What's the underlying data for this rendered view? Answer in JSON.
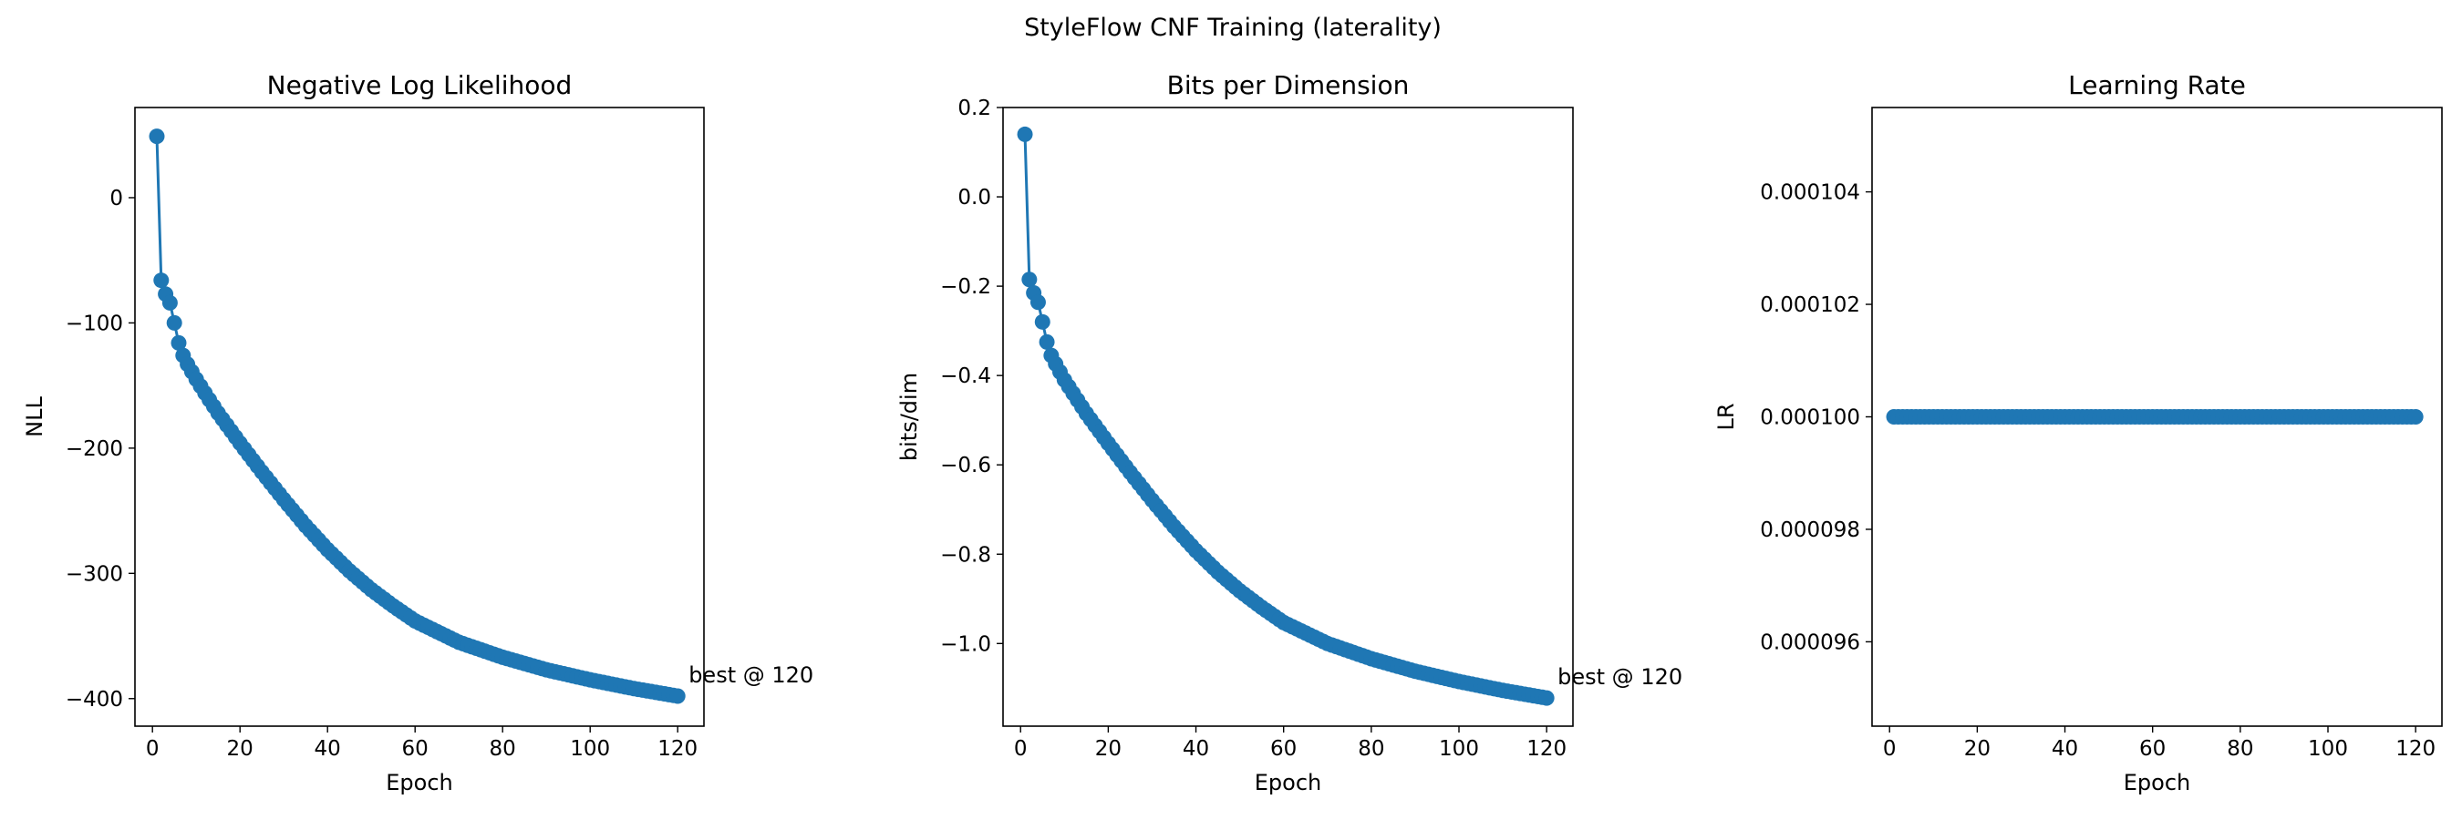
{
  "figure": {
    "title": "StyleFlow CNF Training (laterality)"
  },
  "colors": {
    "series": "#1f77b4",
    "axes": "#000000",
    "background": "#ffffff"
  },
  "chart_data": [
    {
      "type": "line",
      "title": "Negative Log Likelihood",
      "xlabel": "Epoch",
      "ylabel": "NLL",
      "xlim": [
        -4,
        126
      ],
      "ylim": [
        -422,
        72
      ],
      "xticks": [
        0,
        20,
        40,
        60,
        80,
        100,
        120
      ],
      "xtick_labels": [
        "0",
        "20",
        "40",
        "60",
        "80",
        "100",
        "120"
      ],
      "yticks": [
        0,
        -100,
        -200,
        -300,
        -400
      ],
      "ytick_labels": [
        "0",
        "−100",
        "−200",
        "−300",
        "−400"
      ],
      "grid": false,
      "markers": true,
      "x": {
        "start": 1,
        "end": 120,
        "step": 1
      },
      "anchors": [
        [
          1,
          49
        ],
        [
          2,
          -66
        ],
        [
          3,
          -77
        ],
        [
          4,
          -84
        ],
        [
          5,
          -100
        ],
        [
          6,
          -116
        ],
        [
          7,
          -126
        ],
        [
          8,
          -133
        ],
        [
          9,
          -139
        ],
        [
          10,
          -145
        ],
        [
          12,
          -156
        ],
        [
          15,
          -172
        ],
        [
          20,
          -196
        ],
        [
          25,
          -219
        ],
        [
          30,
          -241
        ],
        [
          35,
          -262
        ],
        [
          40,
          -281
        ],
        [
          45,
          -298
        ],
        [
          50,
          -313
        ],
        [
          55,
          -326
        ],
        [
          60,
          -338
        ],
        [
          70,
          -355
        ],
        [
          80,
          -367
        ],
        [
          90,
          -377
        ],
        [
          100,
          -385
        ],
        [
          110,
          -392
        ],
        [
          120,
          -398
        ]
      ],
      "annotation": {
        "text": "best @ 120",
        "x": 120,
        "y": -398
      }
    },
    {
      "type": "line",
      "title": "Bits per Dimension",
      "xlabel": "Epoch",
      "ylabel": "bits/dim",
      "xlim": [
        -4,
        126
      ],
      "ylim": [
        -1.185,
        0.2
      ],
      "xticks": [
        0,
        20,
        40,
        60,
        80,
        100,
        120
      ],
      "xtick_labels": [
        "0",
        "20",
        "40",
        "60",
        "80",
        "100",
        "120"
      ],
      "yticks": [
        0.2,
        0.0,
        -0.2,
        -0.4,
        -0.6,
        -0.8,
        -1.0
      ],
      "ytick_labels": [
        "0.2",
        "0.0",
        "−0.2",
        "−0.4",
        "−0.6",
        "−0.8",
        "−1.0"
      ],
      "grid": false,
      "markers": true,
      "x": {
        "start": 1,
        "end": 120,
        "step": 1
      },
      "anchors": [
        [
          1,
          0.14
        ],
        [
          2,
          -0.185
        ],
        [
          3,
          -0.215
        ],
        [
          4,
          -0.236
        ],
        [
          5,
          -0.28
        ],
        [
          6,
          -0.325
        ],
        [
          7,
          -0.355
        ],
        [
          8,
          -0.374
        ],
        [
          9,
          -0.392
        ],
        [
          10,
          -0.41
        ],
        [
          12,
          -0.44
        ],
        [
          15,
          -0.485
        ],
        [
          20,
          -0.552
        ],
        [
          25,
          -0.617
        ],
        [
          30,
          -0.679
        ],
        [
          35,
          -0.738
        ],
        [
          40,
          -0.792
        ],
        [
          45,
          -0.84
        ],
        [
          50,
          -0.882
        ],
        [
          55,
          -0.919
        ],
        [
          60,
          -0.953
        ],
        [
          70,
          -1.0
        ],
        [
          80,
          -1.034
        ],
        [
          90,
          -1.062
        ],
        [
          100,
          -1.085
        ],
        [
          110,
          -1.105
        ],
        [
          120,
          -1.122
        ]
      ],
      "annotation": {
        "text": "best @ 120",
        "x": 120,
        "y": -1.122
      }
    },
    {
      "type": "line",
      "title": "Learning Rate",
      "xlabel": "Epoch",
      "ylabel": "LR",
      "xlim": [
        -4,
        126
      ],
      "ylim": [
        9.45e-05,
        0.0001055
      ],
      "xticks": [
        0,
        20,
        40,
        60,
        80,
        100,
        120
      ],
      "xtick_labels": [
        "0",
        "20",
        "40",
        "60",
        "80",
        "100",
        "120"
      ],
      "yticks": [
        0.000104,
        0.000102,
        0.0001,
        9.8e-05,
        9.6e-05
      ],
      "ytick_labels": [
        "0.000104",
        "0.000102",
        "0.000100",
        "0.000098",
        "0.000096"
      ],
      "grid": false,
      "markers": true,
      "x": {
        "start": 1,
        "end": 120,
        "step": 1
      },
      "anchors": [
        [
          1,
          0.0001
        ],
        [
          120,
          0.0001
        ]
      ]
    }
  ]
}
